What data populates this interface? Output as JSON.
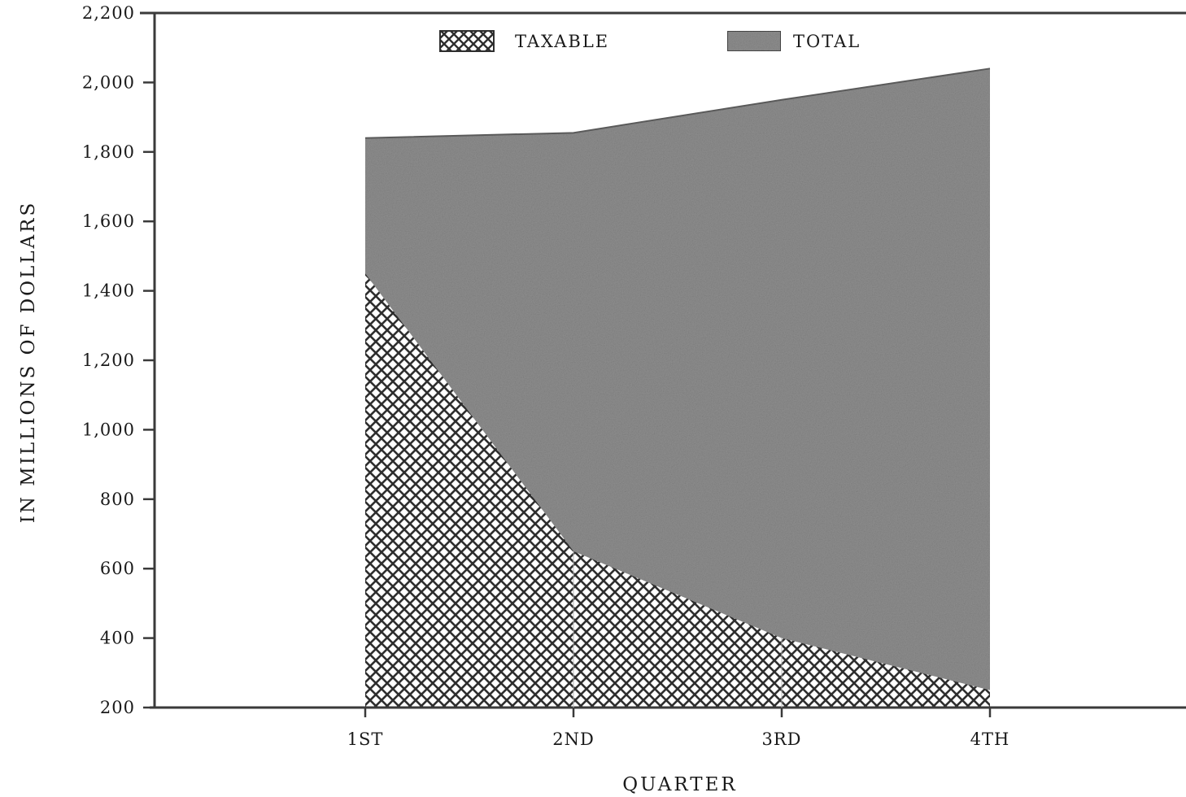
{
  "chart_data": {
    "type": "area",
    "title": "",
    "xlabel": "QUARTER",
    "ylabel": "IN MILLIONS OF DOLLARS",
    "categories": [
      "1ST",
      "2ND",
      "3RD",
      "4TH"
    ],
    "ylim": [
      200,
      2200
    ],
    "yticks": [
      200,
      400,
      600,
      800,
      1000,
      1200,
      1400,
      1600,
      1800,
      2000,
      2200
    ],
    "ytick_labels": [
      "200",
      "400",
      "600",
      "800",
      "1,000",
      "1,200",
      "1,400",
      "1,600",
      "1,800",
      "2,000",
      "2,200"
    ],
    "grid": false,
    "legend_position": "top-center",
    "series": [
      {
        "name": "TAXABLE",
        "values": [
          1450,
          650,
          400,
          250
        ],
        "pattern": "crosshatch"
      },
      {
        "name": "TOTAL",
        "values": [
          1840,
          1855,
          1950,
          2040
        ],
        "pattern": "stipple"
      }
    ],
    "colors": {
      "total_fill": "#8f8f8f",
      "taxable_fill": "#ffffff",
      "hatch": "#2e2e2e",
      "axis": "#3a3a3a"
    }
  }
}
